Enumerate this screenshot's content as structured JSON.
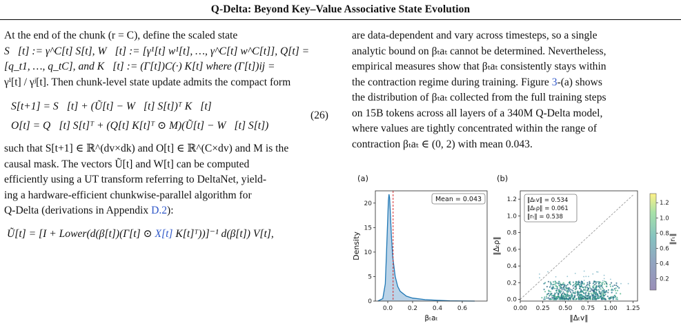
{
  "header": {
    "title": "Q-Delta: Beyond Key–Value Associative State Evolution"
  },
  "left": {
    "para1": [
      "At the end of the chunk (r = C), define the scaled state",
      "S⃗[t] := γ^C[t] S[t], W⃖[t] := [γ¹[t] w¹[t], …, γ^C[t] w^C[t]], Q[t] =",
      "[q_t1, …, q_tC], and K⃗[t] := (Γ[t])C(·) K[t] where (Γ[t])ij =",
      "γⁱ[t] / γʲ[t]. Then chunk-level state update admits the compact form"
    ],
    "eq26": {
      "line1": "S[t+1] = S⃗[t] + (Ũ[t] − W⃖[t] S[t])ᵀ K⃗[t]",
      "line2": "O[t] = Q⃖[t] S[t]ᵀ + (Q[t] K[t]ᵀ ⊙ M)(Ũ[t] − W⃖[t] S[t])",
      "number": "(26)"
    },
    "para2": [
      "such that S[t+1] ∈ ℝ^(dv×dk) and O[t] ∈ ℝ^(C×dv) and M is the",
      "causal mask. The vectors Ũ[t] and W[t] can be computed",
      "efficiently using a UT transform referring to DeltaNet, yield-",
      "ing a hardware-efficient chunkwise-parallel algorithm for"
    ],
    "para2_last_prefix": "Q-Delta (derivations in Appendix ",
    "para2_last_ref": "D.2",
    "para2_last_suffix": "):",
    "eq_bottom_prefix": "Ũ[t] = [I + Lower(d(β[t])(Γ[t] ⊙ ",
    "eq_bottom_ref": "X[t]",
    "eq_bottom_suffix": " K[t]ᵀ))]⁻¹ d(β[t]) V[t],"
  },
  "right": {
    "line1": "are data-dependent and vary across timesteps, so a single",
    "line2": "analytic bound on βₜaₜ cannot be determined. Nevertheless,",
    "line3": "empirical measures show that βₜaₜ consistently stays within",
    "line4_prefix": "the contraction regime during training. Figure ",
    "line4_ref": "3",
    "line4_suffix": "-(a) shows",
    "line5": "the distribution of βₜaₜ collected from the full training steps",
    "line6": "on 15B tokens across all layers of a 340M Q-Delta model,",
    "line7": "where values are tightly concentrated within the range of",
    "line8": "contraction βₜaₜ ∈ (0, 2) with mean 0.043."
  },
  "figure": {
    "panel_a_label": "(a)",
    "panel_b_label": "(b)",
    "colors": {
      "density_line": "#1f77b4",
      "density_fill": "#aecbe4",
      "mean_line": "#d62728",
      "scatter": "#2a8a8a",
      "diagonal": "#999999"
    },
    "chart_data": [
      {
        "type": "area",
        "ylabel": "Density",
        "xlabel": "βₜaₜ",
        "xlim": [
          -0.1,
          0.8
        ],
        "ylim": [
          0,
          22.5
        ],
        "xticks": [
          "0.0",
          "0.2",
          "0.4",
          "0.6"
        ],
        "yticks": [
          "0",
          "5",
          "10",
          "15",
          "20"
        ],
        "x": [
          -0.08,
          -0.04,
          -0.02,
          -0.01,
          0.0,
          0.005,
          0.01,
          0.015,
          0.02,
          0.03,
          0.04,
          0.06,
          0.08,
          0.1,
          0.15,
          0.2,
          0.3,
          0.4,
          0.5,
          0.6,
          0.7
        ],
        "y": [
          0,
          0.5,
          3.5,
          10,
          17,
          20.5,
          21.8,
          21.0,
          18.5,
          13.0,
          9.0,
          5.0,
          3.0,
          2.0,
          1.0,
          0.6,
          0.3,
          0.15,
          0.05,
          0.02,
          0.0
        ],
        "mean": 0.043,
        "annotation": "Mean = 0.043"
      },
      {
        "type": "scatter",
        "xlabel": "‖Δₜv‖",
        "ylabel": "‖Δₜρ‖",
        "colorbar_label": "‖rₜ‖",
        "xlim": [
          0,
          1.3
        ],
        "ylim": [
          -0.02,
          1.3
        ],
        "xticks": [
          "0.00",
          "0.25",
          "0.50",
          "0.75",
          "1.00",
          "1.25"
        ],
        "yticks": [
          "0.0",
          "0.2",
          "0.4",
          "0.6",
          "0.8",
          "1.0",
          "1.2"
        ],
        "colorbar_ticks": [
          "0.2",
          "0.4",
          "0.6",
          "0.8",
          "1.0",
          "1.2"
        ],
        "legend": [
          "‖Δₜv‖ = 0.534",
          "‖Δₜρ‖ = 0.061",
          "‖rₜ‖ = 0.538"
        ],
        "cluster": {
          "x_range": [
            0.3,
            1.05
          ],
          "y_range": [
            0.0,
            0.22
          ],
          "x_center": 0.55,
          "y_center": 0.06
        }
      }
    ]
  }
}
